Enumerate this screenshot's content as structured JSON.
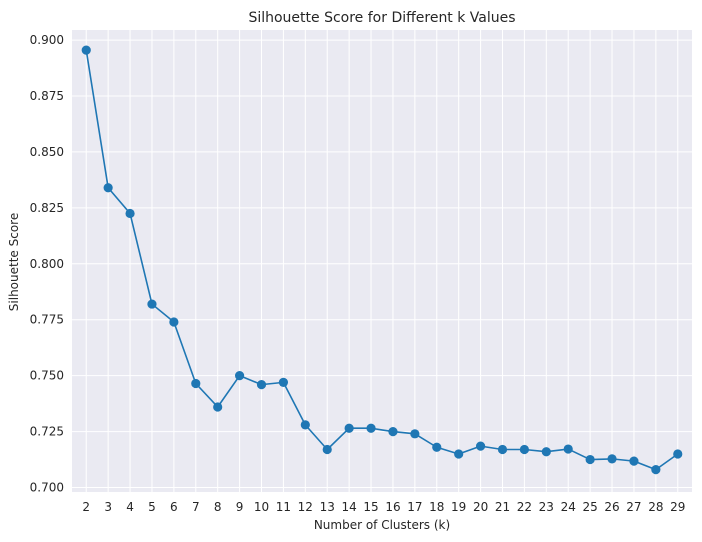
{
  "chart_data": {
    "type": "line",
    "title": "Silhouette Score for Different k Values",
    "xlabel": "Number of Clusters (k)",
    "ylabel": "Silhouette Score",
    "x": [
      2,
      3,
      4,
      5,
      6,
      7,
      8,
      9,
      10,
      11,
      12,
      13,
      14,
      15,
      16,
      17,
      18,
      19,
      20,
      21,
      22,
      23,
      24,
      25,
      26,
      27,
      28,
      29
    ],
    "series": [
      {
        "values": [
          0.8955,
          0.834,
          0.8225,
          0.782,
          0.774,
          0.7465,
          0.736,
          0.75,
          0.746,
          0.747,
          0.728,
          0.717,
          0.7265,
          0.7265,
          0.725,
          0.724,
          0.718,
          0.715,
          0.7185,
          0.717,
          0.717,
          0.716,
          0.7172,
          0.7125,
          0.7128,
          0.7118,
          0.708,
          0.715
        ],
        "color": "#1f77b4",
        "marker": "circle"
      }
    ],
    "xlim": [
      1.35,
      29.65
    ],
    "ylim": [
      0.698,
      0.9045
    ],
    "xticks": [
      "2",
      "3",
      "4",
      "5",
      "6",
      "7",
      "8",
      "9",
      "10",
      "11",
      "12",
      "13",
      "14",
      "15",
      "16",
      "17",
      "18",
      "19",
      "20",
      "21",
      "22",
      "23",
      "24",
      "25",
      "26",
      "27",
      "28",
      "29"
    ],
    "yticks": [
      0.7,
      0.725,
      0.75,
      0.775,
      0.8,
      0.825,
      0.85,
      0.875,
      0.9
    ],
    "ytick_labels": [
      "0.700",
      "0.725",
      "0.750",
      "0.775",
      "0.800",
      "0.825",
      "0.850",
      "0.875",
      "0.900"
    ],
    "grid": true,
    "legend": "none",
    "background_color": "#eaeaf2",
    "grid_color": "#ffffff"
  }
}
